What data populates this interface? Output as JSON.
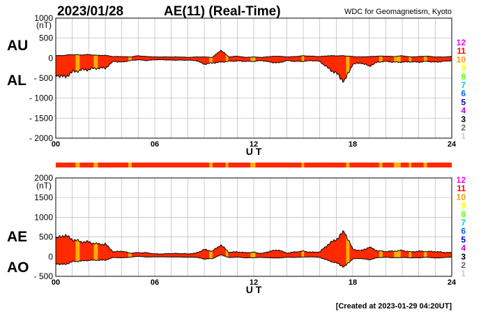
{
  "header": {
    "date": "2023/01/28",
    "title": "AE(11) (Real-Time)",
    "institution": "WDC for Geomagnetism, Kyoto"
  },
  "footer": {
    "created": "[Created at 2023-01-29 04:20UT]"
  },
  "stations": {
    "labels": [
      "12",
      "11",
      "10",
      "9",
      "8",
      "7",
      "6",
      "5",
      "4",
      "3",
      "2",
      "1"
    ],
    "colors": [
      "#ff00ff",
      "#ff0000",
      "#ff9900",
      "#ffff00",
      "#66ff00",
      "#00cccc",
      "#0066ff",
      "#0000cc",
      "#cc00cc",
      "#000000",
      "#666666",
      "#cccccc"
    ]
  },
  "colors": {
    "fill": "#ff2a00",
    "alt_fill": "#ffb000",
    "outline": "#000000",
    "grid": "#b8b8b8"
  },
  "chart_data": [
    {
      "type": "area",
      "panel": "AU/AL",
      "series_labels": [
        "AU",
        "AL"
      ],
      "unit": "(nT)",
      "xlabel": "U T",
      "xlim": [
        0,
        24
      ],
      "x_ticks": [
        "00",
        "06",
        "12",
        "18",
        "24"
      ],
      "ylim": [
        -2000,
        1000
      ],
      "y_ticks": [
        "1000",
        "500",
        "0",
        "- 500",
        "- 1000",
        "- 1500",
        "- 2000"
      ],
      "grid": true,
      "x": [
        0,
        0.5,
        1,
        1.5,
        2,
        2.5,
        3,
        3.5,
        4,
        4.5,
        5,
        5.5,
        6,
        6.5,
        7,
        7.5,
        8,
        8.5,
        9,
        9.5,
        10,
        10.5,
        11,
        11.5,
        12,
        12.5,
        13,
        13.5,
        14,
        14.5,
        15,
        15.5,
        16,
        16.5,
        17,
        17.5,
        18,
        18.5,
        19,
        19.5,
        20,
        20.5,
        21,
        21.5,
        22,
        22.5,
        23,
        23.5,
        24
      ],
      "series": [
        {
          "name": "AU",
          "values": [
            60,
            70,
            90,
            80,
            90,
            70,
            70,
            40,
            40,
            30,
            60,
            40,
            30,
            30,
            30,
            30,
            20,
            30,
            30,
            20,
            200,
            30,
            50,
            20,
            30,
            20,
            40,
            50,
            30,
            40,
            60,
            50,
            40,
            60,
            60,
            60,
            40,
            30,
            40,
            50,
            50,
            40,
            60,
            30,
            40,
            50,
            30,
            30,
            40
          ]
        },
        {
          "name": "AL",
          "values": [
            -400,
            -480,
            -350,
            -300,
            -280,
            -250,
            -250,
            -80,
            -100,
            -60,
            -40,
            -60,
            -40,
            -40,
            -50,
            -50,
            -50,
            -60,
            -150,
            -120,
            -100,
            -80,
            -70,
            -80,
            -80,
            -60,
            -100,
            -120,
            -60,
            -80,
            -80,
            -60,
            -80,
            -250,
            -380,
            -580,
            -150,
            -120,
            -200,
            -100,
            -80,
            -100,
            -100,
            -90,
            -100,
            -80,
            -100,
            -80,
            -60
          ]
        }
      ]
    },
    {
      "type": "area",
      "panel": "AE/AO",
      "series_labels": [
        "AE",
        "AO"
      ],
      "unit": "(nT)",
      "xlabel": "U T",
      "xlim": [
        0,
        24
      ],
      "x_ticks": [
        "00",
        "06",
        "12",
        "18",
        "24"
      ],
      "ylim": [
        -500,
        2000
      ],
      "y_ticks": [
        "2000",
        "1500",
        "1000",
        "500",
        "0",
        "- 500"
      ],
      "grid": true,
      "x": [
        0,
        0.5,
        1,
        1.5,
        2,
        2.5,
        3,
        3.5,
        4,
        4.5,
        5,
        5.5,
        6,
        6.5,
        7,
        7.5,
        8,
        8.5,
        9,
        9.5,
        10,
        10.5,
        11,
        11.5,
        12,
        12.5,
        13,
        13.5,
        14,
        14.5,
        15,
        15.5,
        16,
        16.5,
        17,
        17.5,
        18,
        18.5,
        19,
        19.5,
        20,
        20.5,
        21,
        21.5,
        22,
        22.5,
        23,
        23.5,
        24
      ],
      "series": [
        {
          "name": "AE",
          "values": [
            450,
            550,
            440,
            380,
            370,
            320,
            320,
            120,
            140,
            90,
            100,
            100,
            70,
            70,
            80,
            80,
            70,
            90,
            180,
            140,
            300,
            110,
            120,
            100,
            110,
            80,
            140,
            170,
            90,
            120,
            140,
            110,
            120,
            310,
            440,
            640,
            190,
            150,
            240,
            150,
            130,
            140,
            160,
            120,
            140,
            130,
            130,
            110,
            100
          ]
        },
        {
          "name": "AO",
          "values": [
            -170,
            -205,
            -130,
            -110,
            -95,
            -90,
            -90,
            -20,
            -30,
            -15,
            10,
            -10,
            -5,
            -5,
            -10,
            -10,
            -15,
            -15,
            -60,
            -50,
            50,
            -25,
            -10,
            -30,
            -25,
            -20,
            -30,
            -35,
            -15,
            -20,
            -10,
            -5,
            -20,
            -95,
            -160,
            -260,
            -55,
            -45,
            -80,
            -25,
            -15,
            -30,
            -20,
            -30,
            -30,
            -15,
            -35,
            -25,
            -10
          ]
        }
      ]
    }
  ],
  "activity_bar": {
    "segments": [
      [
        0,
        1.2,
        "fill"
      ],
      [
        1.2,
        1.45,
        "alt_fill"
      ],
      [
        1.45,
        2.3,
        "fill"
      ],
      [
        2.3,
        2.55,
        "alt_fill"
      ],
      [
        2.55,
        4.4,
        "fill"
      ],
      [
        4.4,
        4.6,
        "alt_fill"
      ],
      [
        4.6,
        9.3,
        "fill"
      ],
      [
        9.3,
        9.5,
        "alt_fill"
      ],
      [
        9.5,
        10.3,
        "fill"
      ],
      [
        10.3,
        10.45,
        "alt_fill"
      ],
      [
        10.45,
        11.8,
        "fill"
      ],
      [
        11.8,
        12.1,
        "alt_fill"
      ],
      [
        12.1,
        14.9,
        "fill"
      ],
      [
        14.9,
        15.05,
        "alt_fill"
      ],
      [
        15.05,
        17.6,
        "fill"
      ],
      [
        17.6,
        17.8,
        "alt_fill"
      ],
      [
        17.8,
        19.6,
        "fill"
      ],
      [
        19.6,
        19.8,
        "alt_fill"
      ],
      [
        19.8,
        20.5,
        "fill"
      ],
      [
        20.5,
        20.9,
        "alt_fill"
      ],
      [
        20.9,
        21.4,
        "fill"
      ],
      [
        21.4,
        21.55,
        "alt_fill"
      ],
      [
        21.55,
        22.3,
        "fill"
      ],
      [
        22.3,
        22.5,
        "alt_fill"
      ],
      [
        22.5,
        24,
        "fill"
      ]
    ]
  }
}
